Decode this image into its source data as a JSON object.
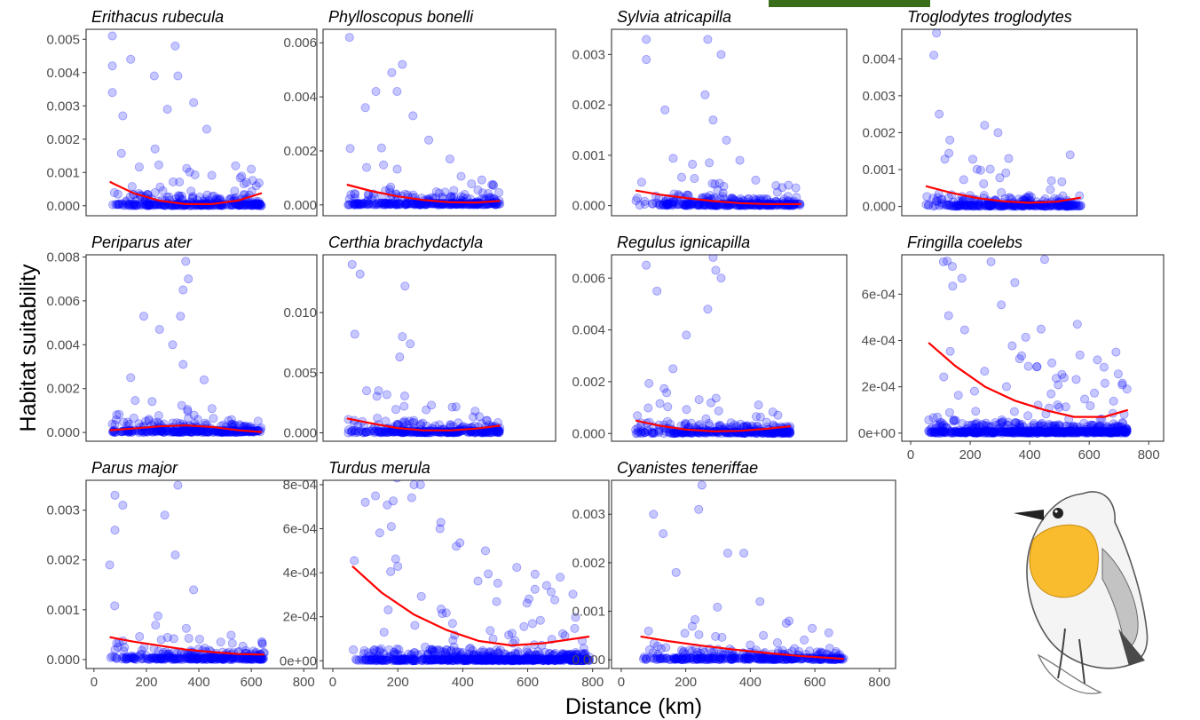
{
  "figure": {
    "xlabel": "Distance (km)",
    "ylabel": "Habitat suitability",
    "colors": {
      "points": "#0000ff",
      "fit": "#ff0000",
      "accent_bar": "#3a6d1a"
    },
    "illustration": "robin-drawing"
  },
  "chart_data": [
    {
      "type": "scatter",
      "title": "Erithacus rubecula",
      "xlim": [
        -30,
        850
      ],
      "ylim": [
        -0.0003,
        0.0053
      ],
      "yticks": [
        0,
        0.001,
        0.002,
        0.003,
        0.004,
        0.005
      ],
      "yticklabels": [
        "0.000",
        "0.001",
        "0.002",
        "0.003",
        "0.004",
        "0.005"
      ],
      "xticks": [],
      "xticklabels": [],
      "points": {
        "n": 320,
        "xrange": [
          60,
          640
        ],
        "ymax": 0.0051,
        "decay": 0.45,
        "highlights": [
          [
            70,
            0.0051
          ],
          [
            310,
            0.0048
          ],
          [
            70,
            0.0042
          ],
          [
            140,
            0.0044
          ],
          [
            230,
            0.0039
          ],
          [
            320,
            0.0039
          ],
          [
            380,
            0.0031
          ],
          [
            280,
            0.0029
          ],
          [
            70,
            0.0034
          ],
          [
            110,
            0.0027
          ],
          [
            430,
            0.0023
          ],
          [
            540,
            0.0012
          ],
          [
            600,
            0.0011
          ]
        ]
      },
      "fit": [
        [
          60,
          0.00072
        ],
        [
          150,
          0.00038
        ],
        [
          250,
          0.00015
        ],
        [
          350,
          5e-05
        ],
        [
          450,
          5e-05
        ],
        [
          550,
          0.00016
        ],
        [
          640,
          0.00038
        ]
      ]
    },
    {
      "type": "scatter",
      "title": "Phylloscopus bonelli",
      "xlim": [
        -30,
        850
      ],
      "ylim": [
        -0.0004,
        0.0065
      ],
      "yticks": [
        0,
        0.002,
        0.004,
        0.006
      ],
      "yticklabels": [
        "0.000",
        "0.002",
        "0.004",
        "0.006"
      ],
      "xticks": [],
      "xticklabels": [],
      "points": {
        "n": 320,
        "xrange": [
          60,
          640
        ],
        "ymax": 0.0062,
        "decay": 0.45,
        "highlights": [
          [
            70,
            0.0062
          ],
          [
            270,
            0.0052
          ],
          [
            230,
            0.0049
          ],
          [
            250,
            0.0042
          ],
          [
            130,
            0.0036
          ],
          [
            170,
            0.0042
          ],
          [
            310,
            0.0033
          ],
          [
            370,
            0.0024
          ],
          [
            450,
            0.0017
          ]
        ]
      },
      "fit": [
        [
          60,
          0.00075
        ],
        [
          150,
          0.00052
        ],
        [
          250,
          0.00032
        ],
        [
          350,
          0.00018
        ],
        [
          450,
          0.0001
        ],
        [
          550,
          9e-05
        ],
        [
          640,
          0.00015
        ]
      ]
    },
    {
      "type": "scatter",
      "title": "Sylvia atricapilla",
      "xlim": [
        -30,
        850
      ],
      "ylim": [
        -0.0002,
        0.0035
      ],
      "yticks": [
        0,
        0.001,
        0.002,
        0.003
      ],
      "yticklabels": [
        "0.000",
        "0.001",
        "0.002",
        "0.003"
      ],
      "xticks": [],
      "xticklabels": [],
      "points": {
        "n": 320,
        "xrange": [
          60,
          680
        ],
        "ymax": 0.0033,
        "decay": 0.4,
        "highlights": [
          [
            100,
            0.0033
          ],
          [
            330,
            0.0033
          ],
          [
            100,
            0.0029
          ],
          [
            380,
            0.003
          ],
          [
            320,
            0.0022
          ],
          [
            170,
            0.0019
          ],
          [
            350,
            0.0017
          ],
          [
            400,
            0.0013
          ],
          [
            450,
            0.0009
          ]
        ]
      },
      "fit": [
        [
          60,
          0.0003
        ],
        [
          150,
          0.00022
        ],
        [
          250,
          0.00015
        ],
        [
          350,
          9e-05
        ],
        [
          450,
          5e-05
        ],
        [
          550,
          3e-05
        ],
        [
          680,
          3e-05
        ]
      ]
    },
    {
      "type": "scatter",
      "title": "Troglodytes troglodytes",
      "xlim": [
        -30,
        850
      ],
      "ylim": [
        -0.00025,
        0.0048
      ],
      "yticks": [
        0,
        0.001,
        0.002,
        0.003,
        0.004
      ],
      "yticklabels": [
        "0.000",
        "0.001",
        "0.002",
        "0.003",
        "0.004"
      ],
      "xticks": [],
      "xticklabels": [],
      "points": {
        "n": 320,
        "xrange": [
          60,
          640
        ],
        "ymax": 0.0047,
        "decay": 0.4,
        "highlights": [
          [
            100,
            0.0047
          ],
          [
            90,
            0.0041
          ],
          [
            110,
            0.0025
          ],
          [
            280,
            0.0022
          ],
          [
            330,
            0.002
          ],
          [
            150,
            0.0018
          ],
          [
            370,
            0.0013
          ],
          [
            600,
            0.0014
          ],
          [
            530,
            0.0007
          ]
        ]
      },
      "fit": [
        [
          60,
          0.00055
        ],
        [
          150,
          0.00038
        ],
        [
          250,
          0.00023
        ],
        [
          350,
          0.00014
        ],
        [
          450,
          0.0001
        ],
        [
          550,
          0.00013
        ],
        [
          640,
          0.00024
        ]
      ]
    },
    {
      "type": "scatter",
      "title": "Periparus ater",
      "xlim": [
        -30,
        850
      ],
      "ylim": [
        -0.0004,
        0.0081
      ],
      "yticks": [
        0,
        0.002,
        0.004,
        0.006,
        0.008
      ],
      "yticklabels": [
        "0.000",
        "0.002",
        "0.004",
        "0.006",
        "0.008"
      ],
      "xticks": [],
      "xticklabels": [],
      "points": {
        "n": 320,
        "xrange": [
          60,
          640
        ],
        "ymax": 0.0078,
        "decay": 0.3,
        "highlights": [
          [
            350,
            0.0078
          ],
          [
            360,
            0.007
          ],
          [
            340,
            0.0065
          ],
          [
            330,
            0.0053
          ],
          [
            190,
            0.0053
          ],
          [
            250,
            0.0047
          ],
          [
            300,
            0.004
          ],
          [
            340,
            0.0031
          ],
          [
            420,
            0.0024
          ],
          [
            140,
            0.0025
          ]
        ]
      },
      "fit": [
        [
          60,
          0.0001
        ],
        [
          150,
          0.00018
        ],
        [
          250,
          0.00028
        ],
        [
          350,
          0.00032
        ],
        [
          450,
          0.00025
        ],
        [
          550,
          0.0001
        ],
        [
          640,
          2e-05
        ]
      ]
    },
    {
      "type": "scatter",
      "title": "Certhia brachydactyla",
      "xlim": [
        -30,
        850
      ],
      "ylim": [
        -0.0007,
        0.0148
      ],
      "yticks": [
        0,
        0.005,
        0.01
      ],
      "yticklabels": [
        "0.000",
        "0.005",
        "0.010"
      ],
      "xticks": [],
      "xticklabels": [],
      "points": {
        "n": 320,
        "xrange": [
          60,
          640
        ],
        "ymax": 0.014,
        "decay": 0.35,
        "highlights": [
          [
            80,
            0.014
          ],
          [
            110,
            0.0132
          ],
          [
            280,
            0.0122
          ],
          [
            90,
            0.0082
          ],
          [
            270,
            0.008
          ],
          [
            300,
            0.0074
          ],
          [
            260,
            0.0063
          ],
          [
            180,
            0.0035
          ],
          [
            380,
            0.0023
          ]
        ]
      },
      "fit": [
        [
          60,
          0.0012
        ],
        [
          150,
          0.0008
        ],
        [
          250,
          0.0004
        ],
        [
          350,
          0.0002
        ],
        [
          450,
          0.0002
        ],
        [
          550,
          0.00035
        ],
        [
          640,
          0.0006
        ]
      ]
    },
    {
      "type": "scatter",
      "title": "Regulus ignicapilla",
      "xlim": [
        -30,
        850
      ],
      "ylim": [
        -0.0003,
        0.0069
      ],
      "yticks": [
        0,
        0.002,
        0.004,
        0.006
      ],
      "yticklabels": [
        "0.000",
        "0.002",
        "0.004",
        "0.006"
      ],
      "xticks": [],
      "xticklabels": [],
      "points": {
        "n": 320,
        "xrange": [
          60,
          640
        ],
        "ymax": 0.0068,
        "decay": 0.35,
        "highlights": [
          [
            350,
            0.0068
          ],
          [
            100,
            0.0065
          ],
          [
            360,
            0.0063
          ],
          [
            380,
            0.006
          ],
          [
            140,
            0.0055
          ],
          [
            330,
            0.0048
          ],
          [
            250,
            0.0038
          ],
          [
            200,
            0.0025
          ],
          [
            520,
            0.0011
          ]
        ]
      },
      "fit": [
        [
          60,
          0.0005
        ],
        [
          150,
          0.0003
        ],
        [
          250,
          0.00015
        ],
        [
          350,
          8e-05
        ],
        [
          450,
          0.0001
        ],
        [
          550,
          0.00018
        ],
        [
          640,
          0.00028
        ]
      ]
    },
    {
      "type": "scatter",
      "title": "Fringilla coelebs",
      "xlim": [
        -30,
        850
      ],
      "ylim": [
        -3.5e-05,
        0.00077
      ],
      "yticks": [
        0,
        0.0002,
        0.0004,
        0.0006
      ],
      "yticklabels": [
        "0e+00",
        "2e-04",
        "4e-04",
        "6e-04"
      ],
      "xticks": [
        0,
        200,
        400,
        600,
        800
      ],
      "xticklabels": [
        "0",
        "200",
        "400",
        "600",
        "800"
      ],
      "points": {
        "n": 650,
        "xrange": [
          60,
          730
        ],
        "ymax": 0.00075,
        "decay": 1.1,
        "highlights": [
          [
            110,
            0.00074
          ],
          [
            140,
            0.00072
          ],
          [
            270,
            0.00074
          ],
          [
            450,
            0.00075
          ],
          [
            350,
            0.00065
          ],
          [
            560,
            0.00047
          ],
          [
            690,
            0.00035
          ]
        ]
      },
      "fit": [
        [
          60,
          0.00039
        ],
        [
          150,
          0.00029
        ],
        [
          250,
          0.0002
        ],
        [
          350,
          0.00014
        ],
        [
          450,
          0.0001
        ],
        [
          550,
          7e-05
        ],
        [
          650,
          7e-05
        ],
        [
          730,
          0.0001
        ]
      ]
    },
    {
      "type": "scatter",
      "title": "Parus major",
      "xlim": [
        -30,
        850
      ],
      "ylim": [
        -0.00018,
        0.0036
      ],
      "yticks": [
        0,
        0.001,
        0.002,
        0.003
      ],
      "yticklabels": [
        "0.000",
        "0.001",
        "0.002",
        "0.003"
      ],
      "xticks": [
        0,
        200,
        400,
        600,
        800
      ],
      "xticklabels": [
        "0",
        "200",
        "400",
        "600",
        "800"
      ],
      "points": {
        "n": 320,
        "xrange": [
          60,
          650
        ],
        "ymax": 0.0035,
        "decay": 0.35,
        "highlights": [
          [
            320,
            0.0035
          ],
          [
            80,
            0.0033
          ],
          [
            110,
            0.0031
          ],
          [
            270,
            0.0029
          ],
          [
            60,
            0.0019
          ],
          [
            310,
            0.0021
          ],
          [
            380,
            0.0014
          ],
          [
            80,
            0.0026
          ]
        ]
      },
      "fit": [
        [
          60,
          0.00045
        ],
        [
          150,
          0.00036
        ],
        [
          250,
          0.00028
        ],
        [
          350,
          0.0002
        ],
        [
          450,
          0.00015
        ],
        [
          550,
          0.00011
        ],
        [
          650,
          0.0001
        ]
      ]
    },
    {
      "type": "scatter",
      "title": "Turdus merula",
      "xlim": [
        -30,
        850
      ],
      "ylim": [
        -3.5e-05,
        0.00082
      ],
      "yticks": [
        0,
        0.0002,
        0.0004,
        0.0006,
        0.0008
      ],
      "yticklabels": [
        "0e+00",
        "2e-04",
        "4e-04",
        "6e-04",
        "8e-04"
      ],
      "xticks": [
        0,
        200,
        400,
        600,
        800
      ],
      "xticklabels": [
        "0",
        "200",
        "400",
        "600",
        "800"
      ],
      "points": {
        "n": 700,
        "xrange": [
          60,
          790
        ],
        "ymax": 0.0008,
        "decay": 1.2,
        "highlights": [
          [
            250,
            0.0008
          ],
          [
            270,
            0.0008
          ],
          [
            100,
            0.00072
          ],
          [
            180,
            0.00061
          ],
          [
            330,
            0.0006
          ],
          [
            380,
            0.00052
          ],
          [
            470,
            0.0005
          ],
          [
            700,
            0.00038
          ]
        ]
      },
      "fit": [
        [
          60,
          0.00043
        ],
        [
          150,
          0.00031
        ],
        [
          250,
          0.00021
        ],
        [
          350,
          0.00014
        ],
        [
          450,
          9e-05
        ],
        [
          550,
          7e-05
        ],
        [
          650,
          8e-05
        ],
        [
          790,
          0.00011
        ]
      ]
    },
    {
      "type": "scatter",
      "title": "Cyanistes teneriffae",
      "xlim": [
        -30,
        850
      ],
      "ylim": [
        -0.00018,
        0.0037
      ],
      "yticks": [
        0,
        0.001,
        0.002,
        0.003
      ],
      "yticklabels": [
        "0.000",
        "0.001",
        "0.002",
        "0.003"
      ],
      "xticks": [
        0,
        200,
        400,
        600,
        800
      ],
      "xticklabels": [
        "0",
        "200",
        "400",
        "600",
        "800"
      ],
      "points": {
        "n": 360,
        "xrange": [
          60,
          690
        ],
        "ymax": 0.0036,
        "decay": 0.45,
        "highlights": [
          [
            250,
            0.0036
          ],
          [
            240,
            0.0031
          ],
          [
            100,
            0.003
          ],
          [
            130,
            0.0026
          ],
          [
            330,
            0.0022
          ],
          [
            380,
            0.0022
          ],
          [
            170,
            0.0018
          ],
          [
            430,
            0.0012
          ],
          [
            520,
            0.0008
          ]
        ]
      },
      "fit": [
        [
          60,
          0.00048
        ],
        [
          150,
          0.00038
        ],
        [
          250,
          0.00029
        ],
        [
          350,
          0.00021
        ],
        [
          450,
          0.00014
        ],
        [
          550,
          8e-05
        ],
        [
          690,
          2e-05
        ]
      ]
    }
  ]
}
